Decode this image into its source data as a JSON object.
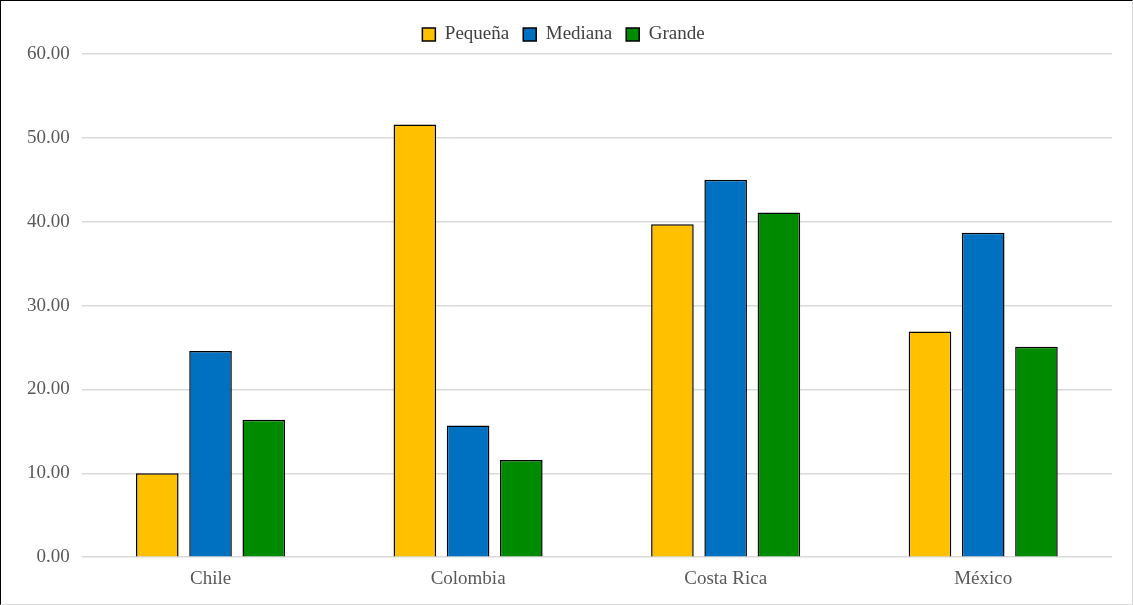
{
  "chart_data": {
    "type": "bar",
    "categories": [
      "Chile",
      "Colombia",
      "Costa Rica",
      "México"
    ],
    "series": [
      {
        "name": "Pequeña",
        "color": "#ffc000",
        "values": [
          10.0,
          51.6,
          39.7,
          26.9
        ]
      },
      {
        "name": "Mediana",
        "color": "#0070c0",
        "values": [
          24.6,
          15.7,
          45.0,
          38.7
        ]
      },
      {
        "name": "Grande",
        "color": "#008a00",
        "values": [
          16.4,
          11.6,
          41.1,
          25.1
        ]
      }
    ],
    "ylim": [
      0,
      60
    ],
    "yticks": [
      {
        "value": 0,
        "label": "0.00"
      },
      {
        "value": 10,
        "label": "10.00"
      },
      {
        "value": 20,
        "label": "20.00"
      },
      {
        "value": 30,
        "label": "30.00"
      },
      {
        "value": 40,
        "label": "40.00"
      },
      {
        "value": 50,
        "label": "50.00"
      },
      {
        "value": 60,
        "label": "60.00"
      }
    ],
    "grid": "y",
    "legend": "top"
  }
}
